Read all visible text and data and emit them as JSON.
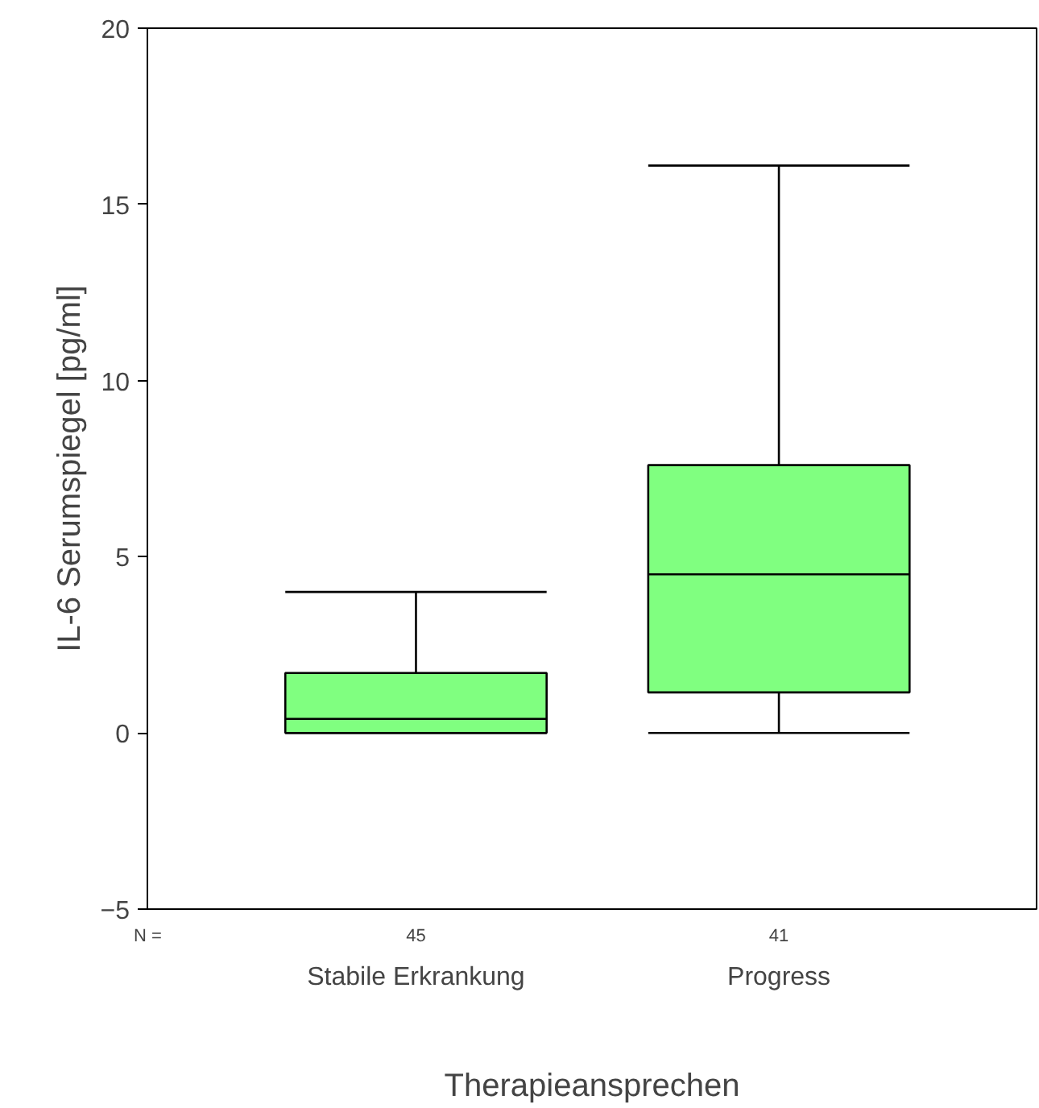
{
  "chart_data": {
    "type": "box",
    "xlabel": "Therapieansprechen",
    "ylabel": "IL-6 Serumspiegel [pg/ml]",
    "categories": [
      "Stabile Erkrankung",
      "Progress"
    ],
    "boxes": [
      {
        "low": 0,
        "q1": 0,
        "median": 0.4,
        "q3": 1.7,
        "high": 4.0
      },
      {
        "low": 0,
        "q1": 1.15,
        "median": 4.5,
        "q3": 7.6,
        "high": 16.1
      }
    ],
    "color": "#80ff80",
    "ylim": [
      -5,
      20
    ],
    "yticks": [
      -5,
      0,
      5,
      10,
      15,
      20
    ],
    "grid": false,
    "annotations": [
      "N =",
      "45",
      "41"
    ]
  }
}
